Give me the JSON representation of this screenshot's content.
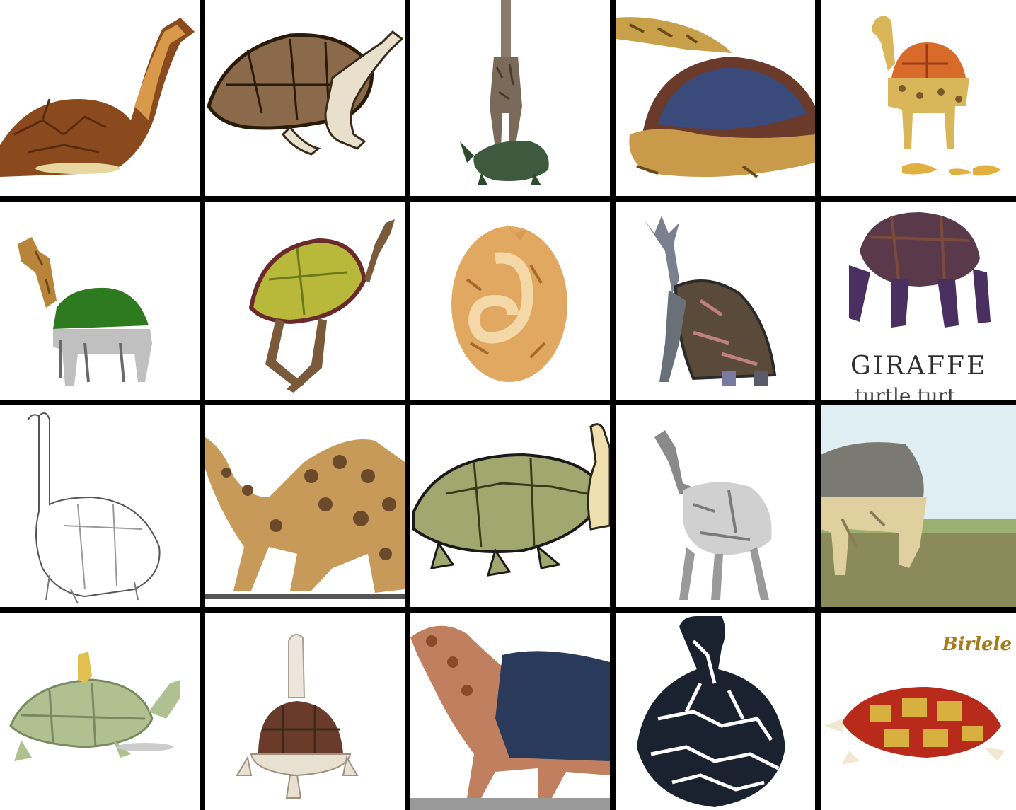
{
  "grid": {
    "rows": 4,
    "columns": 5,
    "tiles": [
      {
        "name": "tile-1-1",
        "caption": null
      },
      {
        "name": "tile-1-2",
        "caption": null
      },
      {
        "name": "tile-1-3",
        "caption": null
      },
      {
        "name": "tile-1-4",
        "caption": null
      },
      {
        "name": "tile-1-5",
        "caption": null
      },
      {
        "name": "tile-2-1",
        "caption": null
      },
      {
        "name": "tile-2-2",
        "caption": null
      },
      {
        "name": "tile-2-3",
        "caption": null
      },
      {
        "name": "tile-2-4",
        "caption": null
      },
      {
        "name": "tile-2-5",
        "caption": {
          "title": "GIRAFFE",
          "subtitle": "turtle turt"
        }
      },
      {
        "name": "tile-3-1",
        "caption": null
      },
      {
        "name": "tile-3-2",
        "caption": null
      },
      {
        "name": "tile-3-3",
        "caption": null
      },
      {
        "name": "tile-3-4",
        "caption": null
      },
      {
        "name": "tile-3-5",
        "caption": null
      },
      {
        "name": "tile-4-1",
        "caption": null
      },
      {
        "name": "tile-4-2",
        "caption": null
      },
      {
        "name": "tile-4-3",
        "caption": null
      },
      {
        "name": "tile-4-4",
        "caption": null
      },
      {
        "name": "tile-4-5",
        "caption": {
          "signature": "Birlele"
        }
      }
    ]
  },
  "colors": {
    "background": "#000000",
    "tile": "#ffffff"
  }
}
